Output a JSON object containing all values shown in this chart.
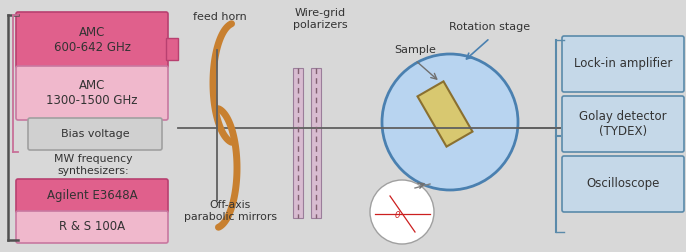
{
  "fig_w": 6.86,
  "fig_h": 2.52,
  "bg_color": "#d8d8d8",
  "panel_color": "#ececec",
  "pink_dark_fc": "#e0608c",
  "pink_dark_ec": "#b84070",
  "pink_light_fc": "#f0b8cc",
  "pink_light_ec": "#c878a0",
  "gray_fc": "#d0d0d0",
  "gray_ec": "#a0a0a0",
  "blue_fc": "#c5d8e8",
  "blue_ec": "#5a8aaa",
  "mirror_color": "#c88030",
  "beam_color": "#606060",
  "circle_fc": "#b8d4f0",
  "circle_ec": "#4a80b0",
  "sample_fc": "#d8c870",
  "sample_ec": "#8a7030",
  "text_color": "#333333",
  "bracket_color": "#505050",
  "inner_bracket_color": "#c87098",
  "label_feedhorn": "feed horn",
  "label_wiregrid": "Wire-grid\npolarizers",
  "label_offaxis": "Off-axis\nparabolic mirrors",
  "label_sample": "Sample",
  "label_rotation": "Rotation stage",
  "label_mwfreq": "MW frequency\nsynthesizers:",
  "label_amc1": "AMC\n600-642 GHz",
  "label_amc2": "AMC\n1300-1500 GHz",
  "label_bias": "Bias voltage",
  "label_agilent": "Agilent E3648A",
  "label_rs": "R & S 100A",
  "label_lockin": "Lock-in amplifier",
  "label_golay": "Golay detector\n(TYDEX)",
  "label_osc": "Oscilloscope"
}
